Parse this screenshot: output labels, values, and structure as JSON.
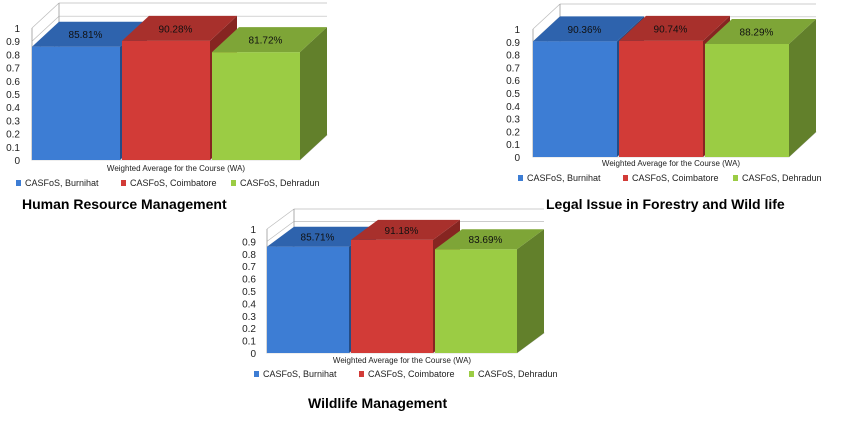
{
  "chart_data": [
    {
      "type": "bar",
      "title": "Human Resource Management",
      "xlabel": "Weighted Average for the Course (WA)",
      "ylim": [
        0,
        1
      ],
      "yticks": [
        "0",
        "0.1",
        "0.2",
        "0.3",
        "0.4",
        "0.5",
        "0.6",
        "0.7",
        "0.8",
        "0.9",
        "1"
      ],
      "series": [
        {
          "name": "CASFoS, Burnihat",
          "value": 0.8581,
          "label": "85.81%"
        },
        {
          "name": "CASFoS, Coimbatore",
          "value": 0.9028,
          "label": "90.28%"
        },
        {
          "name": "CASFoS, Dehradun",
          "value": 0.8172,
          "label": "81.72%"
        }
      ],
      "legend": "bottom",
      "grid": true
    },
    {
      "type": "bar",
      "title": "Legal Issue in Forestry and Wild life",
      "xlabel": "Weighted Average for the Course (WA)",
      "ylim": [
        0,
        1
      ],
      "yticks": [
        "0",
        "0.1",
        "0.2",
        "0.3",
        "0.4",
        "0.5",
        "0.6",
        "0.7",
        "0.8",
        "0.9",
        "1"
      ],
      "series": [
        {
          "name": "CASFoS, Burnihat",
          "value": 0.9036,
          "label": "90.36%"
        },
        {
          "name": "CASFoS, Coimbatore",
          "value": 0.9074,
          "label": "90.74%"
        },
        {
          "name": "CASFoS, Dehradun",
          "value": 0.8829,
          "label": "88.29%"
        }
      ],
      "legend": "bottom",
      "grid": true
    },
    {
      "type": "bar",
      "title": "Wildlife Management",
      "xlabel": "Weighted Average for the Course (WA)",
      "ylim": [
        0,
        1
      ],
      "yticks": [
        "0",
        "0.1",
        "0.2",
        "0.3",
        "0.4",
        "0.5",
        "0.6",
        "0.7",
        "0.8",
        "0.9",
        "1"
      ],
      "series": [
        {
          "name": "CASFoS, Burnihat",
          "value": 0.8571,
          "label": "85.71%"
        },
        {
          "name": "CASFoS, Coimbatore",
          "value": 0.9118,
          "label": "91.18%"
        },
        {
          "name": "CASFoS, Dehradun",
          "value": 0.8369,
          "label": "83.69%"
        }
      ],
      "legend": "bottom",
      "grid": true
    }
  ],
  "colors": {
    "series": [
      {
        "front": "#3d7dd4",
        "top": "#2e63ad",
        "side": "#234c86"
      },
      {
        "front": "#d23b37",
        "top": "#a8302c",
        "side": "#862521"
      },
      {
        "front": "#9bcc44",
        "top": "#7ea537",
        "side": "#62802b"
      }
    ],
    "grid": "#bbbbbb",
    "text": "#222222"
  }
}
